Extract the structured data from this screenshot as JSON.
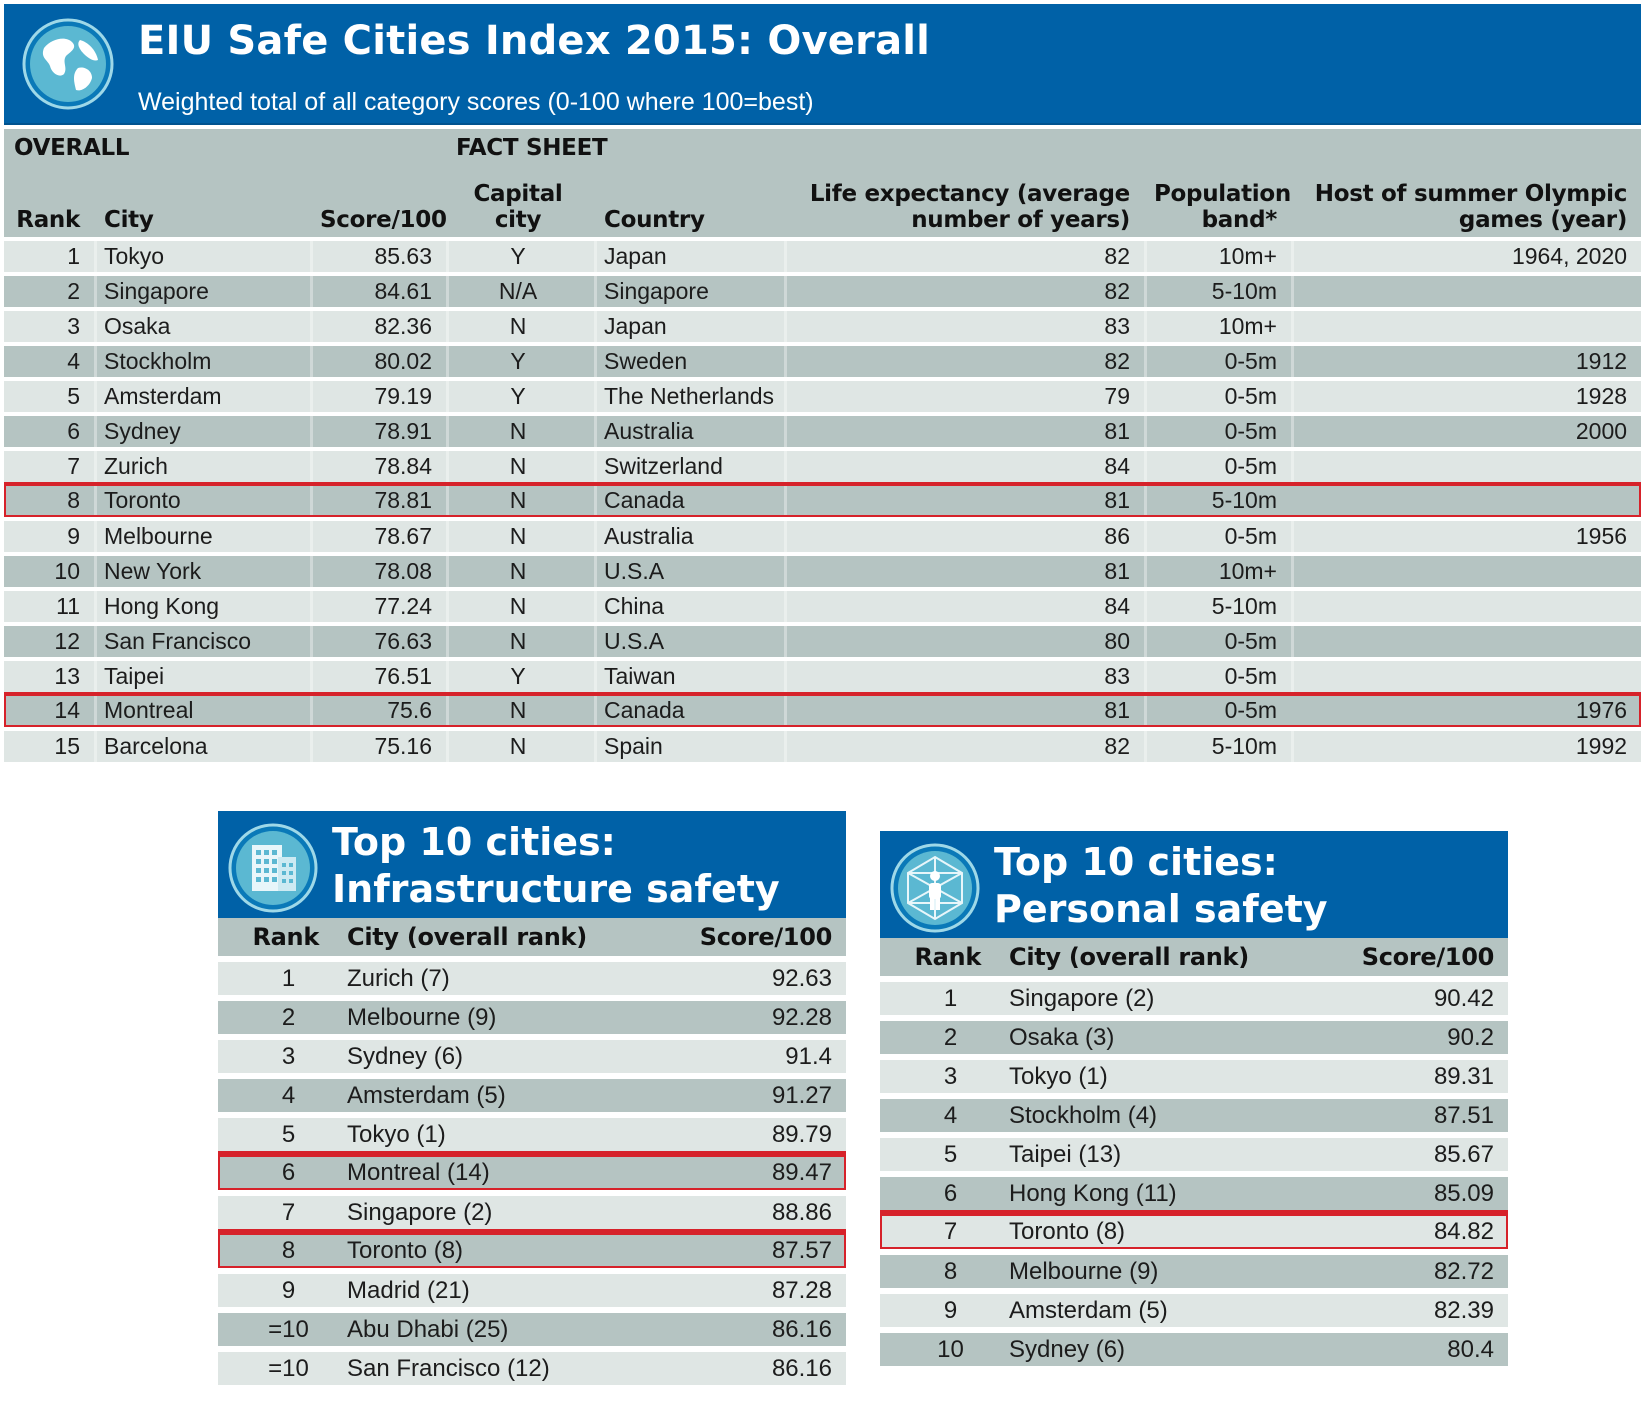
{
  "header": {
    "title": "EIU Safe Cities Index 2015: Overall",
    "subtitle": "Weighted total of all category scores (0-100 where 100=best)",
    "icon": "globe-icon"
  },
  "overall": {
    "group_overall": "OVERALL",
    "group_fact_sheet": "FACT SHEET",
    "columns": {
      "rank": "Rank",
      "city": "City",
      "score": "Score/100",
      "capital": "Capital city",
      "country": "Country",
      "life_expectancy": "Life expectancy (average number of years)",
      "population": "Population band*",
      "olympics": "Host of summer Olympic games (year)"
    },
    "highlight_color": "#d6222a",
    "rows": [
      {
        "rank": "1",
        "city": "Tokyo",
        "score": "85.63",
        "capital": "Y",
        "country": "Japan",
        "life": "82",
        "pop": "10m+",
        "olympics": "1964, 2020",
        "highlight": false
      },
      {
        "rank": "2",
        "city": "Singapore",
        "score": "84.61",
        "capital": "N/A",
        "country": "Singapore",
        "life": "82",
        "pop": "5-10m",
        "olympics": "",
        "highlight": false
      },
      {
        "rank": "3",
        "city": "Osaka",
        "score": "82.36",
        "capital": "N",
        "country": "Japan",
        "life": "83",
        "pop": "10m+",
        "olympics": "",
        "highlight": false
      },
      {
        "rank": "4",
        "city": "Stockholm",
        "score": "80.02",
        "capital": "Y",
        "country": "Sweden",
        "life": "82",
        "pop": "0-5m",
        "olympics": "1912",
        "highlight": false
      },
      {
        "rank": "5",
        "city": "Amsterdam",
        "score": "79.19",
        "capital": "Y",
        "country": "The Netherlands",
        "life": "79",
        "pop": "0-5m",
        "olympics": "1928",
        "highlight": false
      },
      {
        "rank": "6",
        "city": "Sydney",
        "score": "78.91",
        "capital": "N",
        "country": "Australia",
        "life": "81",
        "pop": "0-5m",
        "olympics": "2000",
        "highlight": false
      },
      {
        "rank": "7",
        "city": "Zurich",
        "score": "78.84",
        "capital": "N",
        "country": "Switzerland",
        "life": "84",
        "pop": "0-5m",
        "olympics": "",
        "highlight": false
      },
      {
        "rank": "8",
        "city": "Toronto",
        "score": "78.81",
        "capital": "N",
        "country": "Canada",
        "life": "81",
        "pop": "5-10m",
        "olympics": "",
        "highlight": true
      },
      {
        "rank": "9",
        "city": "Melbourne",
        "score": "78.67",
        "capital": "N",
        "country": "Australia",
        "life": "86",
        "pop": "0-5m",
        "olympics": "1956",
        "highlight": false
      },
      {
        "rank": "10",
        "city": "New York",
        "score": "78.08",
        "capital": "N",
        "country": "U.S.A",
        "life": "81",
        "pop": "10m+",
        "olympics": "",
        "highlight": false
      },
      {
        "rank": "11",
        "city": "Hong Kong",
        "score": "77.24",
        "capital": "N",
        "country": "China",
        "life": "84",
        "pop": "5-10m",
        "olympics": "",
        "highlight": false
      },
      {
        "rank": "12",
        "city": "San Francisco",
        "score": "76.63",
        "capital": "N",
        "country": "U.S.A",
        "life": "80",
        "pop": "0-5m",
        "olympics": "",
        "highlight": false
      },
      {
        "rank": "13",
        "city": "Taipei",
        "score": "76.51",
        "capital": "Y",
        "country": "Taiwan",
        "life": "83",
        "pop": "0-5m",
        "olympics": "",
        "highlight": false
      },
      {
        "rank": "14",
        "city": "Montreal",
        "score": "75.6",
        "capital": "N",
        "country": "Canada",
        "life": "81",
        "pop": "0-5m",
        "olympics": "1976",
        "highlight": true
      },
      {
        "rank": "15",
        "city": "Barcelona",
        "score": "75.16",
        "capital": "N",
        "country": "Spain",
        "life": "82",
        "pop": "5-10m",
        "olympics": "1992",
        "highlight": false
      }
    ]
  },
  "infrastructure": {
    "title_line1": "Top 10 cities:",
    "title_line2": "Infrastructure safety",
    "icon": "building-icon",
    "columns": {
      "rank": "Rank",
      "city": "City (overall rank)",
      "score": "Score/100"
    },
    "rows": [
      {
        "rank": "1",
        "city": "Zurich (7)",
        "score": "92.63",
        "highlight": false
      },
      {
        "rank": "2",
        "city": "Melbourne (9)",
        "score": "92.28",
        "highlight": false
      },
      {
        "rank": "3",
        "city": "Sydney (6)",
        "score": "91.4",
        "highlight": false
      },
      {
        "rank": "4",
        "city": "Amsterdam (5)",
        "score": "91.27",
        "highlight": false
      },
      {
        "rank": "5",
        "city": "Tokyo (1)",
        "score": "89.79",
        "highlight": false
      },
      {
        "rank": "6",
        "city": "Montreal (14)",
        "score": "89.47",
        "highlight": true
      },
      {
        "rank": "7",
        "city": "Singapore (2)",
        "score": "88.86",
        "highlight": false
      },
      {
        "rank": "8",
        "city": "Toronto (8)",
        "score": "87.57",
        "highlight": true
      },
      {
        "rank": "9",
        "city": "Madrid (21)",
        "score": "87.28",
        "highlight": false
      },
      {
        "rank": "=10",
        "city": "Abu Dhabi (25)",
        "score": "86.16",
        "highlight": false
      },
      {
        "rank": "=10",
        "city": "San Francisco (12)",
        "score": "86.16",
        "highlight": false
      }
    ]
  },
  "personal": {
    "title_line1": "Top 10 cities:",
    "title_line2": "Personal safety",
    "icon": "person-network-icon",
    "columns": {
      "rank": "Rank",
      "city": "City (overall rank)",
      "score": "Score/100"
    },
    "rows": [
      {
        "rank": "1",
        "city": "Singapore (2)",
        "score": "90.42",
        "highlight": false
      },
      {
        "rank": "2",
        "city": "Osaka (3)",
        "score": "90.2",
        "highlight": false
      },
      {
        "rank": "3",
        "city": "Tokyo (1)",
        "score": "89.31",
        "highlight": false
      },
      {
        "rank": "4",
        "city": "Stockholm (4)",
        "score": "87.51",
        "highlight": false
      },
      {
        "rank": "5",
        "city": "Taipei (13)",
        "score": "85.67",
        "highlight": false
      },
      {
        "rank": "6",
        "city": "Hong Kong (11)",
        "score": "85.09",
        "highlight": false
      },
      {
        "rank": "7",
        "city": "Toronto (8)",
        "score": "84.82",
        "highlight": true
      },
      {
        "rank": "8",
        "city": "Melbourne (9)",
        "score": "82.72",
        "highlight": false
      },
      {
        "rank": "9",
        "city": "Amsterdam (5)",
        "score": "82.39",
        "highlight": false
      },
      {
        "rank": "10",
        "city": "Sydney (6)",
        "score": "80.4",
        "highlight": false
      }
    ]
  }
}
